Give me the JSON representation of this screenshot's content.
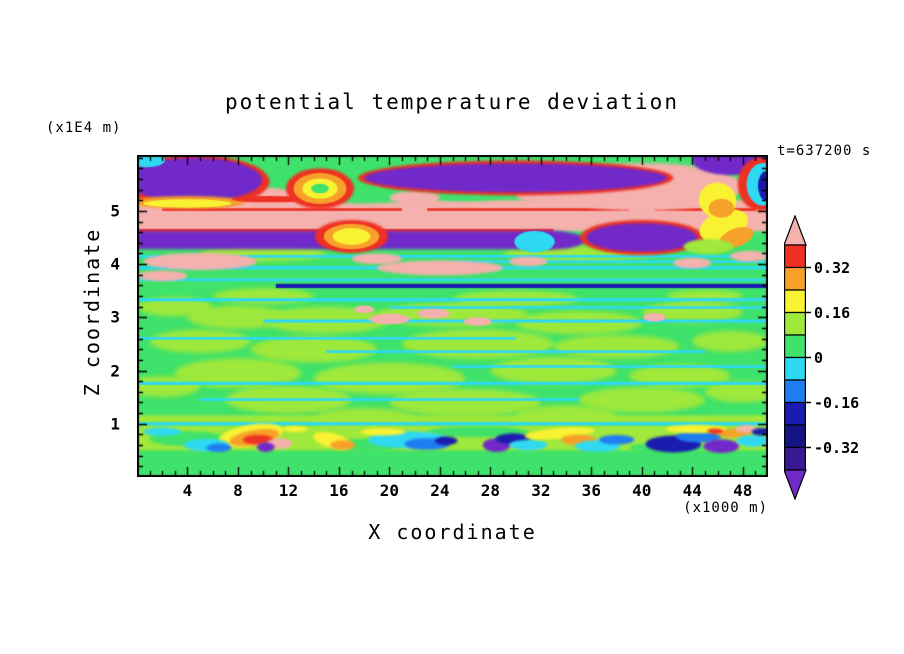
{
  "header": {
    "title": "potential temperature deviation",
    "z_unit_label": "(x1E4 m)",
    "time_label": "t=637200 s"
  },
  "axes": {
    "x": {
      "label": "X coordinate",
      "unit_label": "(x1000 m)",
      "major_ticks": [
        4,
        8,
        12,
        16,
        20,
        24,
        28,
        32,
        36,
        40,
        44,
        48
      ],
      "minor_step": 1
    },
    "z": {
      "label": "Z coordinate",
      "major_ticks": [
        1,
        2,
        3,
        4,
        5
      ],
      "minor_step": 0.2
    }
  },
  "colorbar": {
    "labels": [
      "0.32",
      "0.16",
      "0",
      "-0.16",
      "-0.32"
    ],
    "label_boundaries": [
      1,
      3,
      5,
      7,
      9
    ],
    "segments": [
      "#ee3123",
      "#f7a02a",
      "#f9f232",
      "#9fe83c",
      "#3fe26a",
      "#2fd9f2",
      "#1f7df2",
      "#1b1bb0",
      "#141484",
      "#3a1894"
    ],
    "arrow_top_color": "#f5b1ad",
    "arrow_bottom_color": "#7129c9"
  },
  "chart_data": {
    "type": "heatmap",
    "title": "potential temperature deviation",
    "xlabel": "X coordinate",
    "ylabel": "Z coordinate",
    "x_unit": "(x1000 m)",
    "z_unit": "(x1E4 m)",
    "time": "t=637200 s",
    "x_range": [
      0,
      50
    ],
    "z_range": [
      0,
      6.05
    ],
    "contour_level_step": 0.08,
    "labeled_levels": [
      0.32,
      0.16,
      0,
      -0.16,
      -0.32
    ],
    "palette": {
      "gr": "#3fe26a",
      "lg": "#9fe83c",
      "cy": "#2fd9f2",
      "bl": "#1f7df2",
      "nv": "#1b1bb0",
      "n2": "#141484",
      "pu": "#7129c9",
      "pk": "#f5b1ad",
      "rd": "#ee3123",
      "or": "#f7a02a",
      "ye": "#f9f232"
    },
    "background": "gr",
    "feature_format": {
      "e": [
        "shape",
        "color",
        "cx",
        "cz",
        "rx",
        "rz",
        "blur_px",
        "rot_deg"
      ],
      "r": [
        "shape",
        "color",
        "x0",
        "x1",
        "z0",
        "z1",
        "blur_px"
      ]
    },
    "features": [
      [
        "e",
        "lg",
        3,
        3.2,
        3,
        0.18,
        2,
        0
      ],
      [
        "e",
        "lg",
        8,
        3.0,
        4,
        0.22,
        2,
        0
      ],
      [
        "e",
        "lg",
        15,
        2.95,
        5,
        0.25,
        2,
        0
      ],
      [
        "e",
        "lg",
        25,
        3.05,
        6,
        0.22,
        2,
        0
      ],
      [
        "e",
        "lg",
        35,
        2.9,
        5,
        0.22,
        2,
        0
      ],
      [
        "e",
        "lg",
        44,
        3.1,
        4,
        0.2,
        2,
        0
      ],
      [
        "e",
        "lg",
        5,
        2.55,
        4,
        0.22,
        2,
        0
      ],
      [
        "e",
        "lg",
        14,
        2.4,
        5,
        0.25,
        2,
        0
      ],
      [
        "e",
        "lg",
        27,
        2.5,
        6,
        0.28,
        2,
        0
      ],
      [
        "e",
        "lg",
        38,
        2.45,
        5,
        0.22,
        2,
        0
      ],
      [
        "e",
        "lg",
        47,
        2.55,
        3,
        0.2,
        2,
        0
      ],
      [
        "e",
        "lg",
        8,
        1.95,
        5,
        0.28,
        2,
        0
      ],
      [
        "e",
        "lg",
        20,
        1.85,
        6,
        0.3,
        2,
        0
      ],
      [
        "e",
        "lg",
        33,
        2.0,
        5,
        0.26,
        2,
        0
      ],
      [
        "e",
        "lg",
        43,
        1.9,
        4,
        0.22,
        2,
        0
      ],
      [
        "e",
        "lg",
        12,
        1.45,
        5,
        0.26,
        2,
        0
      ],
      [
        "e",
        "lg",
        26,
        1.4,
        6,
        0.26,
        2,
        0
      ],
      [
        "e",
        "lg",
        40,
        1.45,
        5,
        0.24,
        2,
        0
      ],
      [
        "e",
        "lg",
        18,
        1.1,
        4,
        0.2,
        2,
        0
      ],
      [
        "e",
        "lg",
        34,
        1.15,
        4,
        0.2,
        2,
        0
      ],
      [
        "e",
        "lg",
        2,
        1.7,
        3,
        0.2,
        2,
        0
      ],
      [
        "e",
        "lg",
        48,
        1.6,
        3,
        0.2,
        2,
        0
      ],
      [
        "e",
        "lg",
        10,
        3.4,
        4,
        0.15,
        2,
        0
      ],
      [
        "e",
        "lg",
        30,
        3.35,
        5,
        0.15,
        2,
        0
      ],
      [
        "e",
        "lg",
        45,
        3.4,
        3,
        0.12,
        2,
        0
      ],
      [
        "e",
        "lg",
        10,
        4.2,
        5,
        0.15,
        2,
        0
      ],
      [
        "e",
        "lg",
        35,
        4.2,
        6,
        0.15,
        2,
        0
      ],
      [
        "r",
        "lg",
        0,
        50,
        1.02,
        1.16,
        1
      ],
      [
        "r",
        "cy",
        0,
        50,
        3.3,
        3.36,
        0.6
      ],
      [
        "r",
        "cy",
        20,
        50,
        3.16,
        3.21,
        0.6
      ],
      [
        "r",
        "cy",
        10,
        50,
        2.9,
        2.96,
        0.6
      ],
      [
        "r",
        "cy",
        0,
        30,
        2.58,
        2.63,
        0.6
      ],
      [
        "r",
        "cy",
        15,
        45,
        2.33,
        2.38,
        0.6
      ],
      [
        "r",
        "cy",
        0,
        50,
        1.73,
        1.79,
        0.6
      ],
      [
        "r",
        "cy",
        5,
        35,
        1.43,
        1.48,
        0.6
      ],
      [
        "r",
        "cy",
        25,
        50,
        2.05,
        2.1,
        0.6
      ],
      [
        "e",
        "pk",
        20,
        2.97,
        1.6,
        0.1,
        0.5,
        0
      ],
      [
        "e",
        "pk",
        23.5,
        3.07,
        1.3,
        0.09,
        0.5,
        0
      ],
      [
        "e",
        "pk",
        27,
        2.92,
        1.1,
        0.08,
        0.5,
        0
      ],
      [
        "e",
        "pk",
        41,
        3.0,
        0.9,
        0.08,
        0.5,
        0
      ],
      [
        "e",
        "pk",
        18,
        3.15,
        0.8,
        0.07,
        0.5,
        0
      ],
      [
        "r",
        "cy",
        0,
        50,
        3.68,
        3.73,
        0.5
      ],
      [
        "r",
        "nv",
        11,
        50,
        3.55,
        3.63,
        0.4
      ],
      [
        "r",
        "cy",
        0,
        50,
        3.9,
        3.96,
        0.5
      ],
      [
        "r",
        "cy",
        25,
        50,
        4.02,
        4.07,
        0.5
      ],
      [
        "r",
        "cy",
        0,
        50,
        4.12,
        4.17,
        0.5
      ],
      [
        "e",
        "pk",
        5,
        4.05,
        4.5,
        0.16,
        0.8,
        0
      ],
      [
        "e",
        "pk",
        24,
        3.93,
        5,
        0.14,
        0.8,
        0
      ],
      [
        "e",
        "pk",
        19,
        4.1,
        2,
        0.1,
        0.8,
        0
      ],
      [
        "e",
        "pk",
        31,
        4.05,
        1.5,
        0.09,
        0.8,
        0
      ],
      [
        "e",
        "pk",
        44,
        4.02,
        1.5,
        0.1,
        0.8,
        0
      ],
      [
        "e",
        "pk",
        48.5,
        4.15,
        1.5,
        0.1,
        0.8,
        0
      ],
      [
        "e",
        "pk",
        2,
        3.78,
        2,
        0.1,
        0.8,
        0
      ],
      [
        "r",
        "pk",
        0,
        50,
        4.62,
        5.2,
        1.2
      ],
      [
        "e",
        "gr",
        3,
        5.32,
        3,
        0.14,
        1.5,
        0
      ],
      [
        "e",
        "gr",
        18,
        5.28,
        4,
        0.14,
        1.5,
        0
      ],
      [
        "e",
        "gr",
        26,
        5.3,
        3,
        0.12,
        1.5,
        0
      ],
      [
        "e",
        "pk",
        10,
        5.28,
        2.5,
        0.16,
        1.2,
        0
      ],
      [
        "e",
        "pk",
        22,
        5.25,
        2,
        0.12,
        1.2,
        0
      ],
      [
        "e",
        "pk",
        33,
        5.3,
        3,
        0.16,
        1.2,
        0
      ],
      [
        "e",
        "pk",
        39,
        5.33,
        2.2,
        0.14,
        1.2,
        0
      ],
      [
        "r",
        "rd",
        2,
        21,
        5.0,
        5.05,
        0.3
      ],
      [
        "r",
        "rd",
        23,
        39,
        5.0,
        5.05,
        0.3
      ],
      [
        "r",
        "rd",
        41,
        49,
        5.0,
        5.05,
        0.3
      ],
      [
        "r",
        "rd",
        0,
        33,
        4.59,
        4.66,
        0.5
      ],
      [
        "r",
        "pu",
        0,
        32,
        4.28,
        4.62,
        1.5
      ],
      [
        "e",
        "pu",
        32.5,
        4.45,
        3,
        0.18,
        1.5,
        0
      ],
      [
        "e",
        "rd",
        17,
        4.52,
        2.9,
        0.31,
        0.8,
        0
      ],
      [
        "e",
        "or",
        17,
        4.52,
        2.2,
        0.24,
        0.6,
        0
      ],
      [
        "e",
        "ye",
        17,
        4.52,
        1.5,
        0.16,
        0.5,
        0
      ],
      [
        "e",
        "cy",
        31.5,
        4.42,
        1.6,
        0.2,
        0.6,
        0
      ],
      [
        "e",
        "rd",
        40,
        4.5,
        4.9,
        0.33,
        0.8,
        0
      ],
      [
        "e",
        "pu",
        40,
        4.5,
        4.4,
        0.27,
        0.8,
        0
      ],
      [
        "e",
        "ye",
        46.5,
        4.72,
        2.0,
        0.28,
        0.6,
        -20
      ],
      [
        "e",
        "or",
        47.5,
        4.5,
        1.4,
        0.17,
        0.5,
        -20
      ],
      [
        "e",
        "lg",
        45.3,
        4.33,
        2,
        0.14,
        0.8,
        0
      ],
      [
        "e",
        "pk",
        40,
        5.45,
        8,
        0.45,
        1.5,
        0
      ],
      [
        "e",
        "rd",
        4.5,
        5.55,
        6.0,
        0.5,
        1,
        0
      ],
      [
        "e",
        "pu",
        4.5,
        5.58,
        5.4,
        0.42,
        1,
        0
      ],
      [
        "e",
        "or",
        4,
        5.16,
        4.5,
        0.12,
        0.8,
        0
      ],
      [
        "e",
        "ye",
        4,
        5.14,
        3.5,
        0.08,
        0.6,
        0
      ],
      [
        "e",
        "rd",
        10.5,
        5.22,
        3,
        0.06,
        0.4,
        0
      ],
      [
        "e",
        "cy",
        0.8,
        5.95,
        1.4,
        0.13,
        0.6,
        0
      ],
      [
        "e",
        "rd",
        14.5,
        5.42,
        2.7,
        0.38,
        0.8,
        0
      ],
      [
        "e",
        "or",
        14.5,
        5.42,
        2.1,
        0.29,
        0.6,
        0
      ],
      [
        "e",
        "ye",
        14.5,
        5.42,
        1.4,
        0.19,
        0.5,
        0
      ],
      [
        "e",
        "gr",
        14.5,
        5.42,
        0.7,
        0.09,
        0.4,
        0
      ],
      [
        "e",
        "rd",
        30,
        5.62,
        12.5,
        0.33,
        0.8,
        0
      ],
      [
        "e",
        "pu",
        30,
        5.62,
        12,
        0.27,
        1.2,
        0
      ],
      [
        "e",
        "pu",
        47,
        5.95,
        3,
        0.28,
        1,
        0
      ],
      [
        "e",
        "ye",
        46,
        5.2,
        1.5,
        0.33,
        0.6,
        15
      ],
      [
        "e",
        "or",
        46.3,
        5.05,
        1.0,
        0.18,
        0.5,
        0
      ],
      [
        "e",
        "rd",
        49.4,
        5.5,
        1.8,
        0.5,
        0.8,
        0
      ],
      [
        "e",
        "cy",
        49.6,
        5.5,
        1.3,
        0.4,
        0.6,
        0
      ],
      [
        "e",
        "nv",
        49.9,
        5.47,
        0.7,
        0.28,
        0.5,
        0
      ],
      [
        "r",
        "lg",
        0,
        50,
        0.5,
        0.97,
        1
      ],
      [
        "e",
        "gr",
        4,
        0.72,
        3,
        0.14,
        1,
        0
      ],
      [
        "e",
        "gr",
        18,
        0.6,
        3,
        0.12,
        1,
        0
      ],
      [
        "e",
        "gr",
        27,
        0.85,
        4,
        0.1,
        1,
        0
      ],
      [
        "e",
        "gr",
        42,
        0.55,
        3,
        0.1,
        1,
        0
      ],
      [
        "r",
        "cy",
        0,
        50,
        0.97,
        1.03,
        0.4
      ],
      [
        "e",
        "ye",
        9,
        0.78,
        2.6,
        0.2,
        0.8,
        -10
      ],
      [
        "e",
        "or",
        9.3,
        0.74,
        2.0,
        0.14,
        0.8,
        -10
      ],
      [
        "e",
        "rd",
        9.6,
        0.7,
        1.2,
        0.09,
        0.8,
        0
      ],
      [
        "e",
        "pk",
        11.3,
        0.63,
        1.0,
        0.1,
        0.8,
        0
      ],
      [
        "e",
        "pu",
        10.2,
        0.56,
        0.7,
        0.09,
        0.8,
        0
      ],
      [
        "e",
        "cy",
        5.5,
        0.6,
        1.8,
        0.12,
        0.8,
        0
      ],
      [
        "e",
        "bl",
        6.5,
        0.55,
        1.0,
        0.08,
        0.8,
        0
      ],
      [
        "e",
        "ye",
        15.5,
        0.68,
        1.6,
        0.14,
        0.8,
        15
      ],
      [
        "e",
        "or",
        16.3,
        0.6,
        1.0,
        0.09,
        0.8,
        0
      ],
      [
        "e",
        "cy",
        2,
        0.85,
        1.5,
        0.08,
        0.8,
        0
      ],
      [
        "e",
        "cy",
        21.5,
        0.7,
        3.2,
        0.16,
        0.8,
        0
      ],
      [
        "e",
        "bl",
        23,
        0.62,
        1.8,
        0.11,
        0.8,
        0
      ],
      [
        "e",
        "nv",
        24.5,
        0.68,
        0.9,
        0.08,
        0.8,
        0
      ],
      [
        "e",
        "ye",
        19.5,
        0.85,
        1.8,
        0.07,
        0.8,
        0
      ],
      [
        "e",
        "pu",
        28.5,
        0.6,
        1.1,
        0.13,
        0.8,
        0
      ],
      [
        "e",
        "nv",
        29.8,
        0.72,
        1.4,
        0.1,
        0.8,
        0
      ],
      [
        "e",
        "cy",
        31,
        0.6,
        1.5,
        0.1,
        0.8,
        0
      ],
      [
        "e",
        "ye",
        33.5,
        0.82,
        2.8,
        0.1,
        0.8,
        -5
      ],
      [
        "e",
        "or",
        35,
        0.7,
        1.4,
        0.1,
        0.8,
        0
      ],
      [
        "e",
        "cy",
        36.5,
        0.58,
        1.8,
        0.11,
        0.8,
        0
      ],
      [
        "e",
        "bl",
        38,
        0.7,
        1.4,
        0.09,
        0.8,
        0
      ],
      [
        "e",
        "nv",
        42.5,
        0.62,
        2.2,
        0.16,
        0.8,
        0
      ],
      [
        "e",
        "bl",
        44.5,
        0.76,
        1.8,
        0.11,
        0.8,
        0
      ],
      [
        "e",
        "pu",
        46.3,
        0.58,
        1.4,
        0.13,
        0.8,
        0
      ],
      [
        "e",
        "ye",
        44.3,
        0.9,
        2.4,
        0.08,
        0.8,
        0
      ],
      [
        "e",
        "or",
        47.3,
        0.82,
        1.4,
        0.08,
        0.8,
        0
      ],
      [
        "e",
        "cy",
        48.8,
        0.68,
        1.3,
        0.11,
        0.8,
        0
      ],
      [
        "e",
        "pk",
        48.3,
        0.9,
        0.9,
        0.07,
        0.8,
        0
      ],
      [
        "e",
        "rd",
        45.8,
        0.86,
        0.6,
        0.05,
        0.8,
        0
      ],
      [
        "e",
        "nv",
        49.5,
        0.85,
        0.8,
        0.07,
        0.8,
        0
      ],
      [
        "e",
        "ye",
        12.5,
        0.9,
        1.0,
        0.06,
        0.8,
        0
      ]
    ]
  }
}
